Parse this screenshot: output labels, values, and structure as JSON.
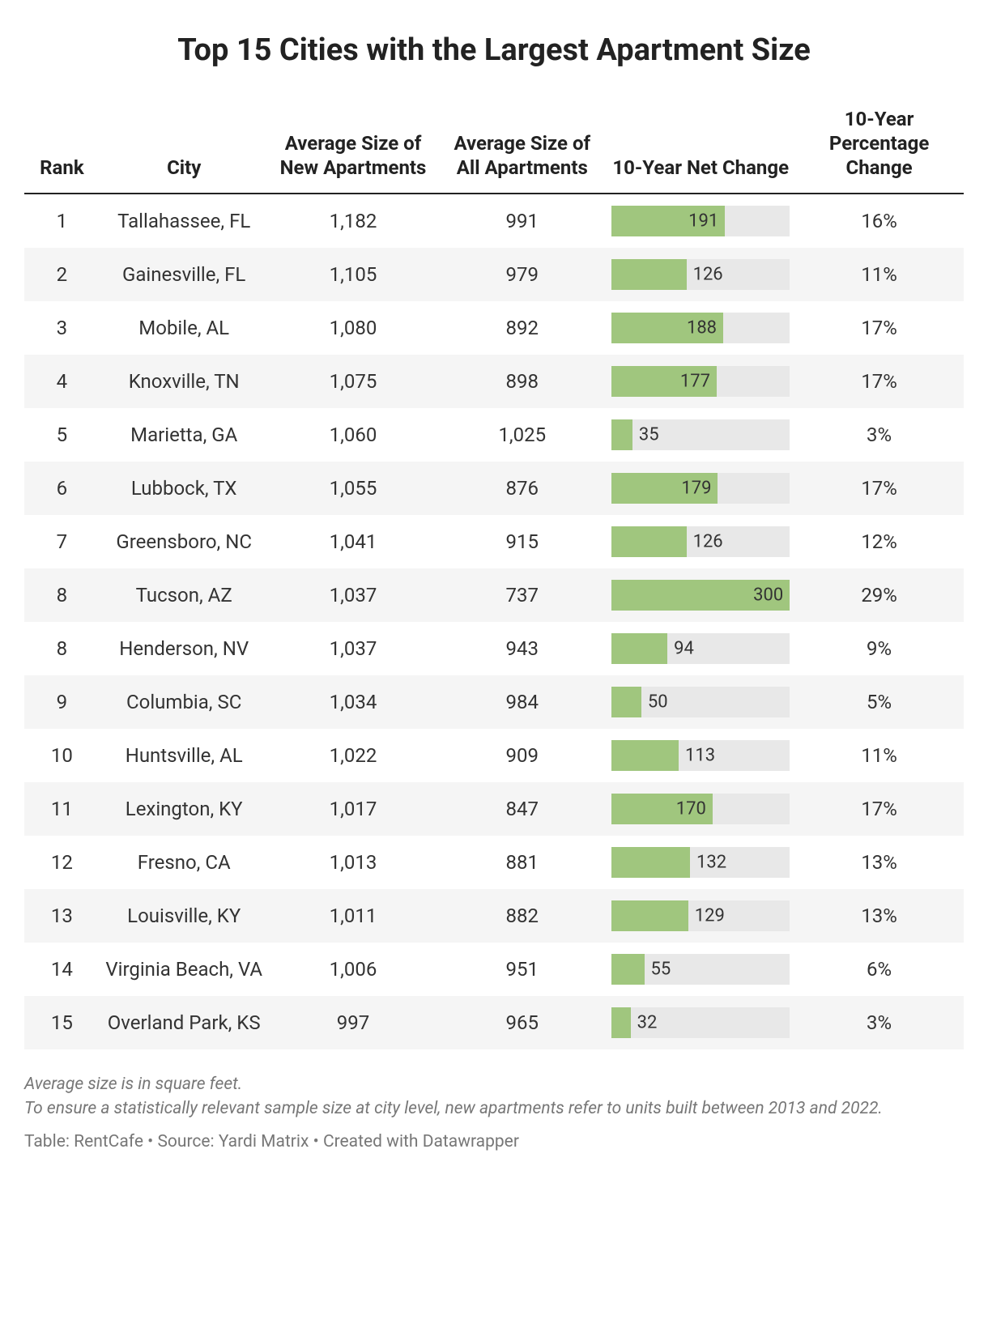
{
  "title": "Top 15 Cities with the Largest Apartment Size",
  "columns": {
    "rank": "Rank",
    "city": "City",
    "avg_new": "Average Size of New Apartments",
    "avg_all": "Average Size of All Apartments",
    "net_change": "10-Year Net Change",
    "pct_change": "10-Year Percentage Change"
  },
  "bar": {
    "max_value": 300,
    "fill_color": "#a0c67e",
    "track_color": "#e8e8e8",
    "label_inside_threshold": 150
  },
  "rows": [
    {
      "rank": "1",
      "city": "Tallahassee, FL",
      "avg_new": "1,182",
      "avg_all": "991",
      "change": 191,
      "pct": "16%"
    },
    {
      "rank": "2",
      "city": "Gainesville, FL",
      "avg_new": "1,105",
      "avg_all": "979",
      "change": 126,
      "pct": "11%"
    },
    {
      "rank": "3",
      "city": "Mobile, AL",
      "avg_new": "1,080",
      "avg_all": "892",
      "change": 188,
      "pct": "17%"
    },
    {
      "rank": "4",
      "city": "Knoxville, TN",
      "avg_new": "1,075",
      "avg_all": "898",
      "change": 177,
      "pct": "17%"
    },
    {
      "rank": "5",
      "city": "Marietta, GA",
      "avg_new": "1,060",
      "avg_all": "1,025",
      "change": 35,
      "pct": "3%"
    },
    {
      "rank": "6",
      "city": "Lubbock, TX",
      "avg_new": "1,055",
      "avg_all": "876",
      "change": 179,
      "pct": "17%"
    },
    {
      "rank": "7",
      "city": "Greensboro, NC",
      "avg_new": "1,041",
      "avg_all": "915",
      "change": 126,
      "pct": "12%"
    },
    {
      "rank": "8",
      "city": "Tucson, AZ",
      "avg_new": "1,037",
      "avg_all": "737",
      "change": 300,
      "pct": "29%"
    },
    {
      "rank": "8",
      "city": "Henderson, NV",
      "avg_new": "1,037",
      "avg_all": "943",
      "change": 94,
      "pct": "9%"
    },
    {
      "rank": "9",
      "city": "Columbia, SC",
      "avg_new": "1,034",
      "avg_all": "984",
      "change": 50,
      "pct": "5%"
    },
    {
      "rank": "10",
      "city": "Huntsville, AL",
      "avg_new": "1,022",
      "avg_all": "909",
      "change": 113,
      "pct": "11%"
    },
    {
      "rank": "11",
      "city": "Lexington, KY",
      "avg_new": "1,017",
      "avg_all": "847",
      "change": 170,
      "pct": "17%"
    },
    {
      "rank": "12",
      "city": "Fresno, CA",
      "avg_new": "1,013",
      "avg_all": "881",
      "change": 132,
      "pct": "13%"
    },
    {
      "rank": "13",
      "city": "Louisville, KY",
      "avg_new": "1,011",
      "avg_all": "882",
      "change": 129,
      "pct": "13%"
    },
    {
      "rank": "14",
      "city": "Virginia Beach, VA",
      "avg_new": "1,006",
      "avg_all": "951",
      "change": 55,
      "pct": "6%"
    },
    {
      "rank": "15",
      "city": "Overland Park, KS",
      "avg_new": "997",
      "avg_all": "965",
      "change": 32,
      "pct": "3%"
    }
  ],
  "footnotes": {
    "line1": "Average size is in square feet.",
    "line2": "To ensure a statistically relevant sample size at city level, new apartments refer to units built between 2013 and 2022.",
    "credit": "Table: RentCafe • Source: Yardi Matrix • Created with Datawrapper"
  }
}
